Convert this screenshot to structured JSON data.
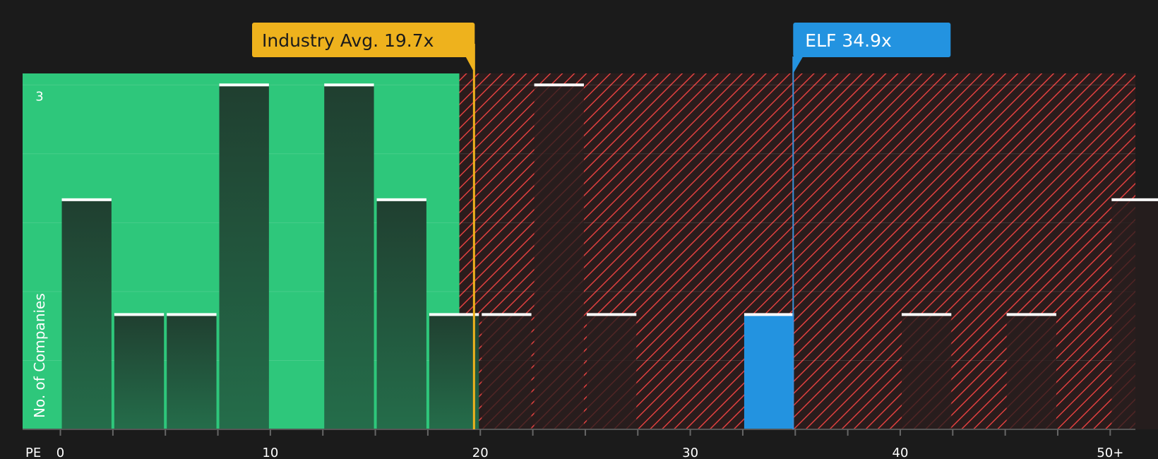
{
  "chart_data": {
    "type": "bar",
    "xlabel": "PE",
    "ylabel": "No. of Companies",
    "x_ticks": [
      "0",
      "10",
      "20",
      "30",
      "40",
      "50+"
    ],
    "y_ticks": [
      "3"
    ],
    "xlim": [
      -1.8,
      51.2
    ],
    "ylim": [
      0,
      3.1
    ],
    "bin_width": 2.5,
    "bins": [
      {
        "start": 0.0,
        "value": 2
      },
      {
        "start": 2.5,
        "value": 1
      },
      {
        "start": 5.0,
        "value": 1
      },
      {
        "start": 7.5,
        "value": 3
      },
      {
        "start": 12.5,
        "value": 3
      },
      {
        "start": 15.0,
        "value": 2
      },
      {
        "start": 17.5,
        "value": 1
      },
      {
        "start": 20.0,
        "value": 1
      },
      {
        "start": 22.5,
        "value": 3
      },
      {
        "start": 25.0,
        "value": 1
      },
      {
        "start": 32.5,
        "value": 1,
        "highlight": true
      },
      {
        "start": 40.0,
        "value": 1
      },
      {
        "start": 45.0,
        "value": 1
      },
      {
        "start": 50.0,
        "value": 2
      }
    ],
    "green_region_end": 19.0,
    "industry_avg": {
      "label": "Industry Avg. 19.7x",
      "value": 19.7
    },
    "company": {
      "label": "ELF 34.9x",
      "value": 34.9
    },
    "colors": {
      "background": "#1b1b1b",
      "green": "#2ec77b",
      "red_hatch": "#e0403f",
      "bar_dark": "#1f4a35",
      "bar_red_dark": "#262222",
      "highlight": "#2393e0",
      "industry": "#eeb21d",
      "cap": "#ffffff"
    }
  }
}
